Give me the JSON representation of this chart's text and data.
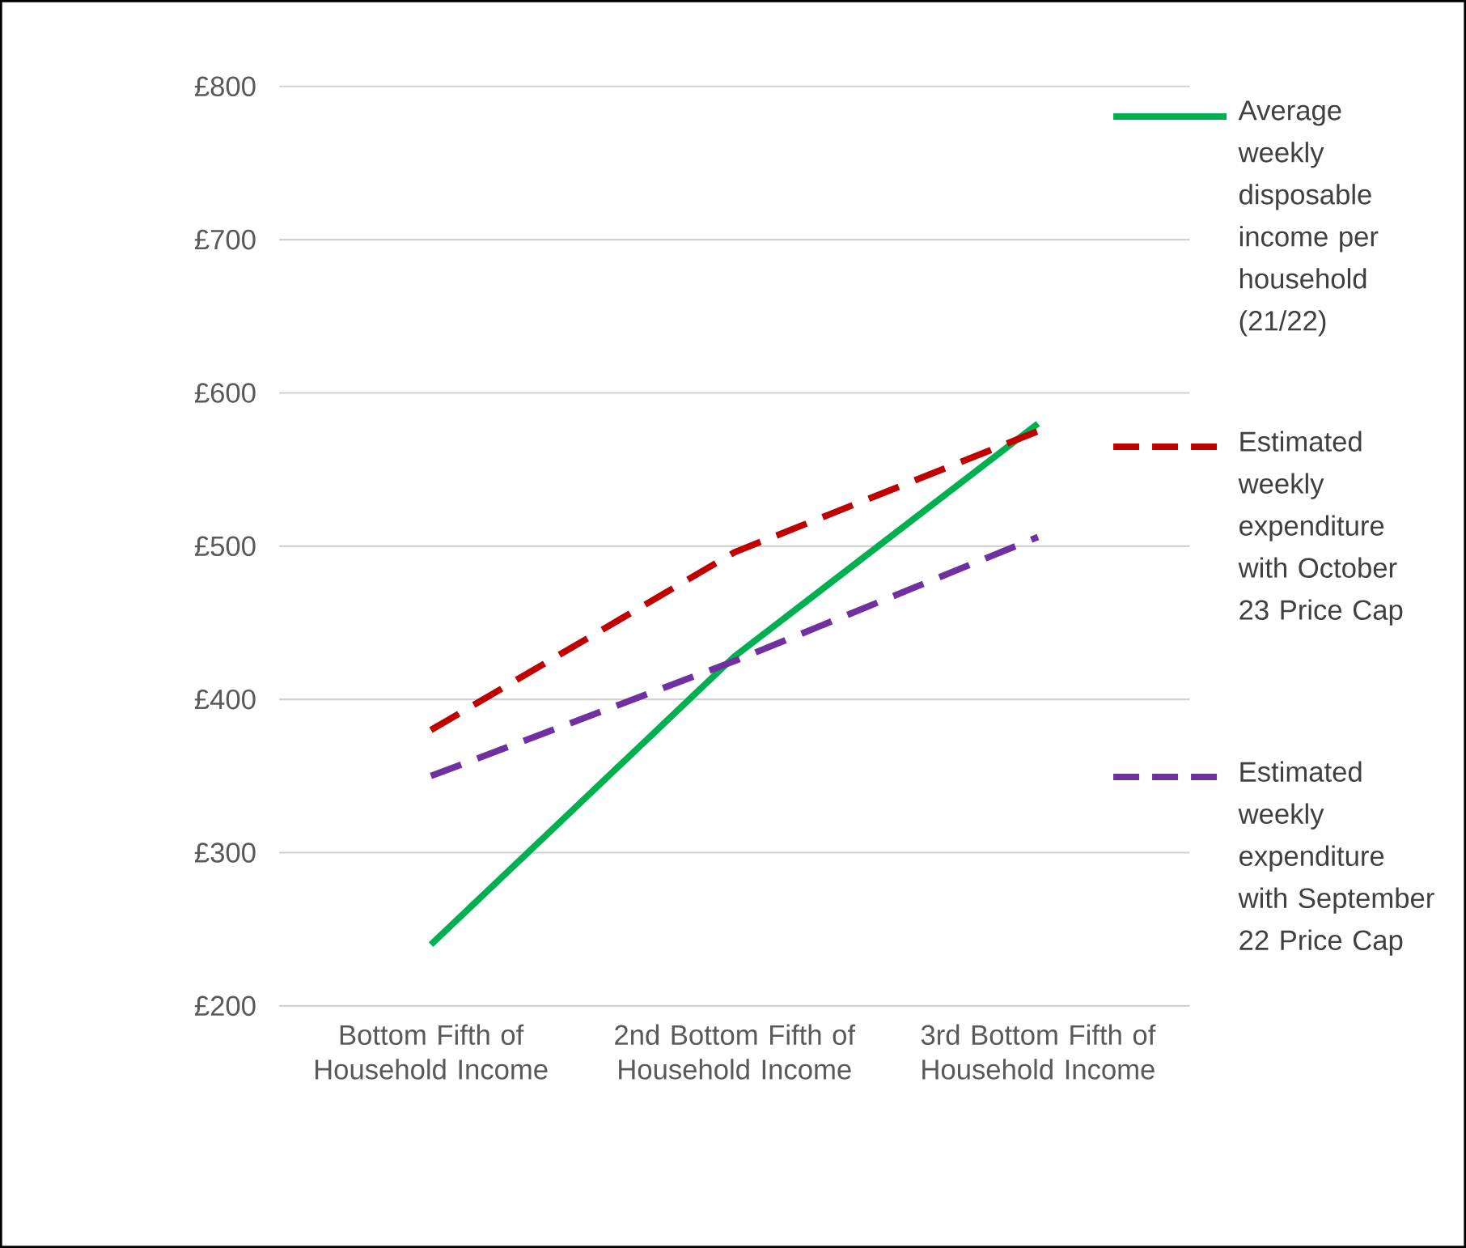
{
  "chart_data": {
    "type": "line",
    "categories": [
      "Bottom Fifth of Household Income",
      "2nd Bottom Fifth of Household Income",
      "3rd Bottom Fifth of Household Income"
    ],
    "series": [
      {
        "name": "Average weekly disposable income per household (21/22)",
        "color": "#00b050",
        "values": [
          240,
          428,
          580
        ],
        "line_style": "solid"
      },
      {
        "name": "Estimated weekly expenditure with October 23 Price Cap",
        "color": "#c00000",
        "values": [
          380,
          496,
          575
        ],
        "line_style": "dashed"
      },
      {
        "name": "Estimated weekly expenditure with September 22 Price Cap",
        "color": "#7030a0",
        "values": [
          350,
          425,
          506
        ],
        "line_style": "dashed"
      }
    ],
    "ylim": [
      200,
      800
    ],
    "yticks": [
      {
        "value": 200,
        "label": "£200"
      },
      {
        "value": 300,
        "label": "£300"
      },
      {
        "value": 400,
        "label": "£400"
      },
      {
        "value": 500,
        "label": "£500"
      },
      {
        "value": 600,
        "label": "£600"
      },
      {
        "value": 700,
        "label": "£700"
      },
      {
        "value": 800,
        "label": "£800"
      }
    ],
    "grid": "y",
    "legend": "right",
    "marker": "none"
  }
}
